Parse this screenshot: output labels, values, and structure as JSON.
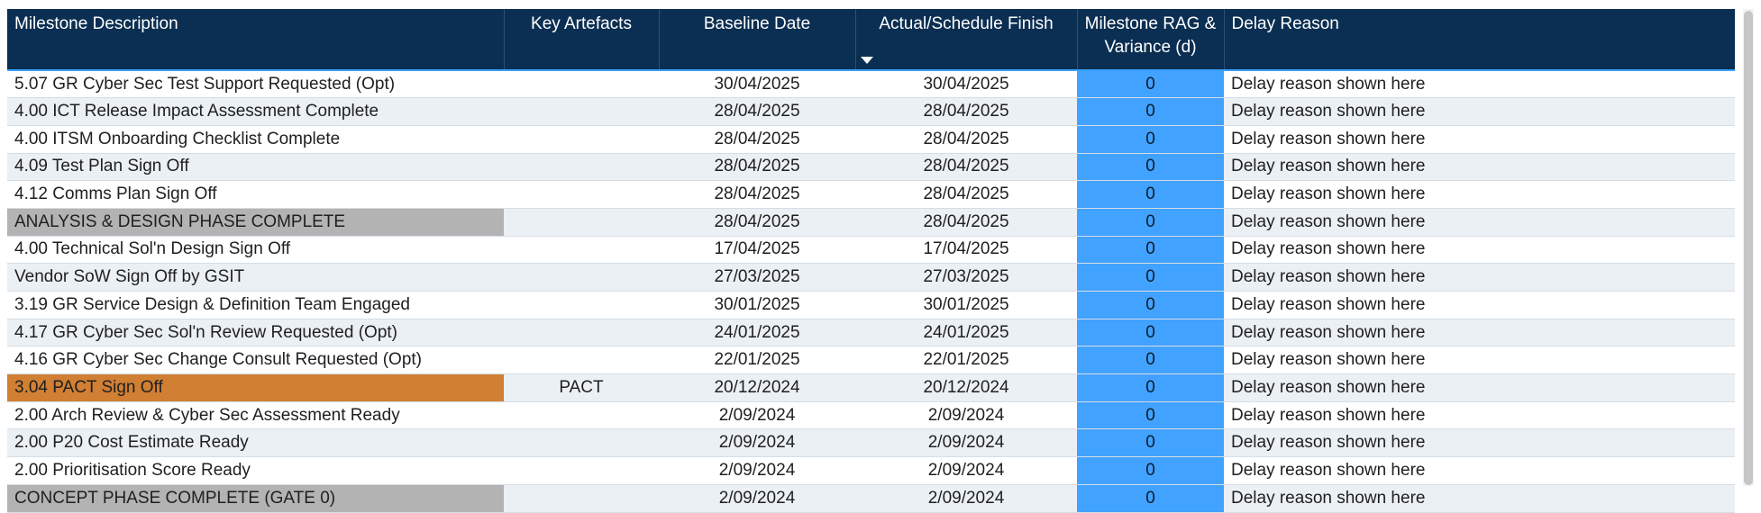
{
  "headers": {
    "milestone": "Milestone Description",
    "artefacts": "Key Artefacts",
    "baseline": "Baseline Date",
    "actual": "Actual/Schedule Finish",
    "variance": "Milestone RAG & Variance (d)",
    "delay": "Delay Reason"
  },
  "rows": [
    {
      "milestone": "5.07 GR Cyber Sec Test Support Requested (Opt)",
      "artefacts": "",
      "baseline": "30/04/2025",
      "actual": "30/04/2025",
      "variance": "0",
      "delay": "Delay reason shown here",
      "highlight": ""
    },
    {
      "milestone": "4.00 ICT Release Impact Assessment Complete",
      "artefacts": "",
      "baseline": "28/04/2025",
      "actual": "28/04/2025",
      "variance": "0",
      "delay": "Delay reason shown here",
      "highlight": ""
    },
    {
      "milestone": "4.00 ITSM Onboarding Checklist Complete",
      "artefacts": "",
      "baseline": "28/04/2025",
      "actual": "28/04/2025",
      "variance": "0",
      "delay": "Delay reason shown here",
      "highlight": ""
    },
    {
      "milestone": "4.09 Test Plan Sign Off",
      "artefacts": "",
      "baseline": "28/04/2025",
      "actual": "28/04/2025",
      "variance": "0",
      "delay": "Delay reason shown here",
      "highlight": ""
    },
    {
      "milestone": "4.12 Comms Plan Sign Off",
      "artefacts": "",
      "baseline": "28/04/2025",
      "actual": "28/04/2025",
      "variance": "0",
      "delay": "Delay reason shown here",
      "highlight": ""
    },
    {
      "milestone": "ANALYSIS & DESIGN PHASE COMPLETE",
      "artefacts": "",
      "baseline": "28/04/2025",
      "actual": "28/04/2025",
      "variance": "0",
      "delay": "Delay reason shown here",
      "highlight": "phase"
    },
    {
      "milestone": "4.00 Technical Sol'n Design Sign Off",
      "artefacts": "",
      "baseline": "17/04/2025",
      "actual": "17/04/2025",
      "variance": "0",
      "delay": "Delay reason shown here",
      "highlight": ""
    },
    {
      "milestone": "Vendor SoW Sign Off by GSIT",
      "artefacts": "",
      "baseline": "27/03/2025",
      "actual": "27/03/2025",
      "variance": "0",
      "delay": "Delay reason shown here",
      "highlight": ""
    },
    {
      "milestone": "3.19 GR Service Design & Definition Team Engaged",
      "artefacts": "",
      "baseline": "30/01/2025",
      "actual": "30/01/2025",
      "variance": "0",
      "delay": "Delay reason shown here",
      "highlight": ""
    },
    {
      "milestone": "4.17 GR Cyber Sec Sol'n Review Requested (Opt)",
      "artefacts": "",
      "baseline": "24/01/2025",
      "actual": "24/01/2025",
      "variance": "0",
      "delay": "Delay reason shown here",
      "highlight": ""
    },
    {
      "milestone": "4.16 GR Cyber Sec Change Consult Requested (Opt)",
      "artefacts": "",
      "baseline": "22/01/2025",
      "actual": "22/01/2025",
      "variance": "0",
      "delay": "Delay reason shown here",
      "highlight": ""
    },
    {
      "milestone": "3.04 PACT Sign Off",
      "artefacts": "PACT",
      "baseline": "20/12/2024",
      "actual": "20/12/2024",
      "variance": "0",
      "delay": "Delay reason shown here",
      "highlight": "orange"
    },
    {
      "milestone": "2.00 Arch Review & Cyber Sec Assessment Ready",
      "artefacts": "",
      "baseline": "2/09/2024",
      "actual": "2/09/2024",
      "variance": "0",
      "delay": "Delay reason shown here",
      "highlight": ""
    },
    {
      "milestone": "2.00 P20 Cost Estimate Ready",
      "artefacts": "",
      "baseline": "2/09/2024",
      "actual": "2/09/2024",
      "variance": "0",
      "delay": "Delay reason shown here",
      "highlight": ""
    },
    {
      "milestone": "2.00 Prioritisation Score Ready",
      "artefacts": "",
      "baseline": "2/09/2024",
      "actual": "2/09/2024",
      "variance": "0",
      "delay": "Delay reason shown here",
      "highlight": ""
    },
    {
      "milestone": "CONCEPT PHASE COMPLETE (GATE 0)",
      "artefacts": "",
      "baseline": "2/09/2024",
      "actual": "2/09/2024",
      "variance": "0",
      "delay": "Delay reason shown here",
      "highlight": "phase"
    }
  ],
  "colors": {
    "header_bg": "#0b2f52",
    "variance_bg": "#41a2ff",
    "phase_bg": "#b3b3b3",
    "pact_bg": "#d07f33",
    "alt_row_bg": "#ebf0f5"
  },
  "icons": {
    "sort": "sort-descending-icon"
  }
}
